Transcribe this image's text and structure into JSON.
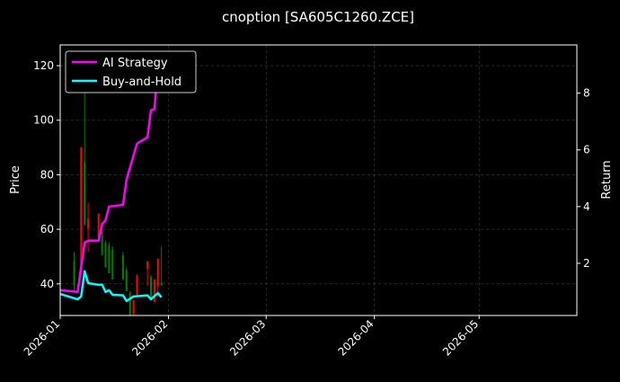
{
  "chart_data": {
    "type": "candlestick+line",
    "title": "cnoption [SA605C1260.ZCE]",
    "ylabel": "Price",
    "ylabel_right": "Return",
    "xlim": [
      "2026-01-01",
      "2026-05-29"
    ],
    "ylim": [
      28.4,
      127.6
    ],
    "ylim_right": [
      0.16,
      9.7
    ],
    "x_ticks": [
      "2026-01",
      "2026-02",
      "2026-03",
      "2026-04",
      "2026-05"
    ],
    "x_tick_dates": [
      "2026-01-01",
      "2026-02-01",
      "2026-03-01",
      "2026-04-01",
      "2026-05-01"
    ],
    "y_ticks": [
      40,
      60,
      80,
      100,
      120
    ],
    "y_ticks_right": [
      2,
      4,
      6,
      8
    ],
    "grid": true,
    "legend_position": "upper-left",
    "colors": {
      "background": "#000000",
      "up": "#008000",
      "down": "#ff0000",
      "ai": "#ff00ff",
      "bh": "#00ffff",
      "grid": "#444444"
    },
    "candles": [
      {
        "date": "2026-01-05",
        "open": 39.4,
        "high": 51.6,
        "low": 37.3,
        "close": 48.3
      },
      {
        "date": "2026-01-07",
        "open": 90.1,
        "high": 90.1,
        "low": 42.7,
        "close": 44.0
      },
      {
        "date": "2026-01-08",
        "open": 61.5,
        "high": 118.6,
        "low": 61.5,
        "close": 84.6
      },
      {
        "date": "2026-01-09",
        "open": 63.8,
        "high": 69.7,
        "low": 51.6,
        "close": 60.4
      },
      {
        "date": "2026-01-12",
        "open": 65.8,
        "high": 65.8,
        "low": 55.9,
        "close": 57.0
      },
      {
        "date": "2026-01-13",
        "open": 50.5,
        "high": 61.5,
        "low": 50.5,
        "close": 60.0
      },
      {
        "date": "2026-01-14",
        "open": 46.0,
        "high": 55.9,
        "low": 46.0,
        "close": 55.0
      },
      {
        "date": "2026-01-15",
        "open": 43.9,
        "high": 55.3,
        "low": 43.9,
        "close": 54.0
      },
      {
        "date": "2026-01-16",
        "open": 41.6,
        "high": 53.8,
        "low": 41.6,
        "close": 52.5
      },
      {
        "date": "2026-01-19",
        "open": 41.6,
        "high": 51.6,
        "low": 41.6,
        "close": 50.5
      },
      {
        "date": "2026-01-20",
        "open": 37.3,
        "high": 46.0,
        "low": 37.3,
        "close": 45.0
      },
      {
        "date": "2026-01-21",
        "open": 28.4,
        "high": 37.3,
        "low": 28.4,
        "close": 36.5
      },
      {
        "date": "2026-01-22",
        "open": 34.0,
        "high": 34.0,
        "low": 28.4,
        "close": 29.0
      },
      {
        "date": "2026-01-23",
        "open": 43.3,
        "high": 43.3,
        "low": 35.0,
        "close": 36.0
      },
      {
        "date": "2026-01-26",
        "open": 48.3,
        "high": 48.3,
        "low": 39.4,
        "close": 45.5
      },
      {
        "date": "2026-01-27",
        "open": 35.0,
        "high": 43.3,
        "low": 35.0,
        "close": 42.5
      },
      {
        "date": "2026-01-28",
        "open": 41.6,
        "high": 41.6,
        "low": 32.8,
        "close": 33.5
      },
      {
        "date": "2026-01-29",
        "open": 49.3,
        "high": 49.3,
        "low": 35.0,
        "close": 39.0
      },
      {
        "date": "2026-01-30",
        "open": 39.4,
        "high": 53.8,
        "low": 39.4,
        "close": 40.5
      }
    ],
    "series": [
      {
        "name": "AI Strategy",
        "axis": "right",
        "points": [
          [
            "2026-01-01",
            1.05
          ],
          [
            "2026-01-06",
            0.99
          ],
          [
            "2026-01-07",
            1.87
          ],
          [
            "2026-01-08",
            2.73
          ],
          [
            "2026-01-09",
            2.8
          ],
          [
            "2026-01-12",
            2.8
          ],
          [
            "2026-01-13",
            3.37
          ],
          [
            "2026-01-14",
            3.52
          ],
          [
            "2026-01-15",
            4.0
          ],
          [
            "2026-01-19",
            4.06
          ],
          [
            "2026-01-20",
            4.95
          ],
          [
            "2026-01-23",
            6.22
          ],
          [
            "2026-01-26",
            6.44
          ],
          [
            "2026-01-27",
            7.4
          ],
          [
            "2026-01-28",
            7.43
          ],
          [
            "2026-01-29",
            9.0
          ],
          [
            "2026-01-30",
            9.2
          ]
        ]
      },
      {
        "name": "Buy-and-Hold",
        "axis": "right",
        "points": [
          [
            "2026-01-01",
            0.92
          ],
          [
            "2026-01-06",
            0.73
          ],
          [
            "2026-01-07",
            0.83
          ],
          [
            "2026-01-08",
            1.72
          ],
          [
            "2026-01-09",
            1.3
          ],
          [
            "2026-01-12",
            1.24
          ],
          [
            "2026-01-13",
            1.25
          ],
          [
            "2026-01-14",
            0.99
          ],
          [
            "2026-01-15",
            1.05
          ],
          [
            "2026-01-16",
            0.89
          ],
          [
            "2026-01-19",
            0.87
          ],
          [
            "2026-01-20",
            0.67
          ],
          [
            "2026-01-22",
            0.83
          ],
          [
            "2026-01-26",
            0.87
          ],
          [
            "2026-01-27",
            0.73
          ],
          [
            "2026-01-29",
            0.95
          ],
          [
            "2026-01-30",
            0.8
          ]
        ]
      }
    ]
  }
}
